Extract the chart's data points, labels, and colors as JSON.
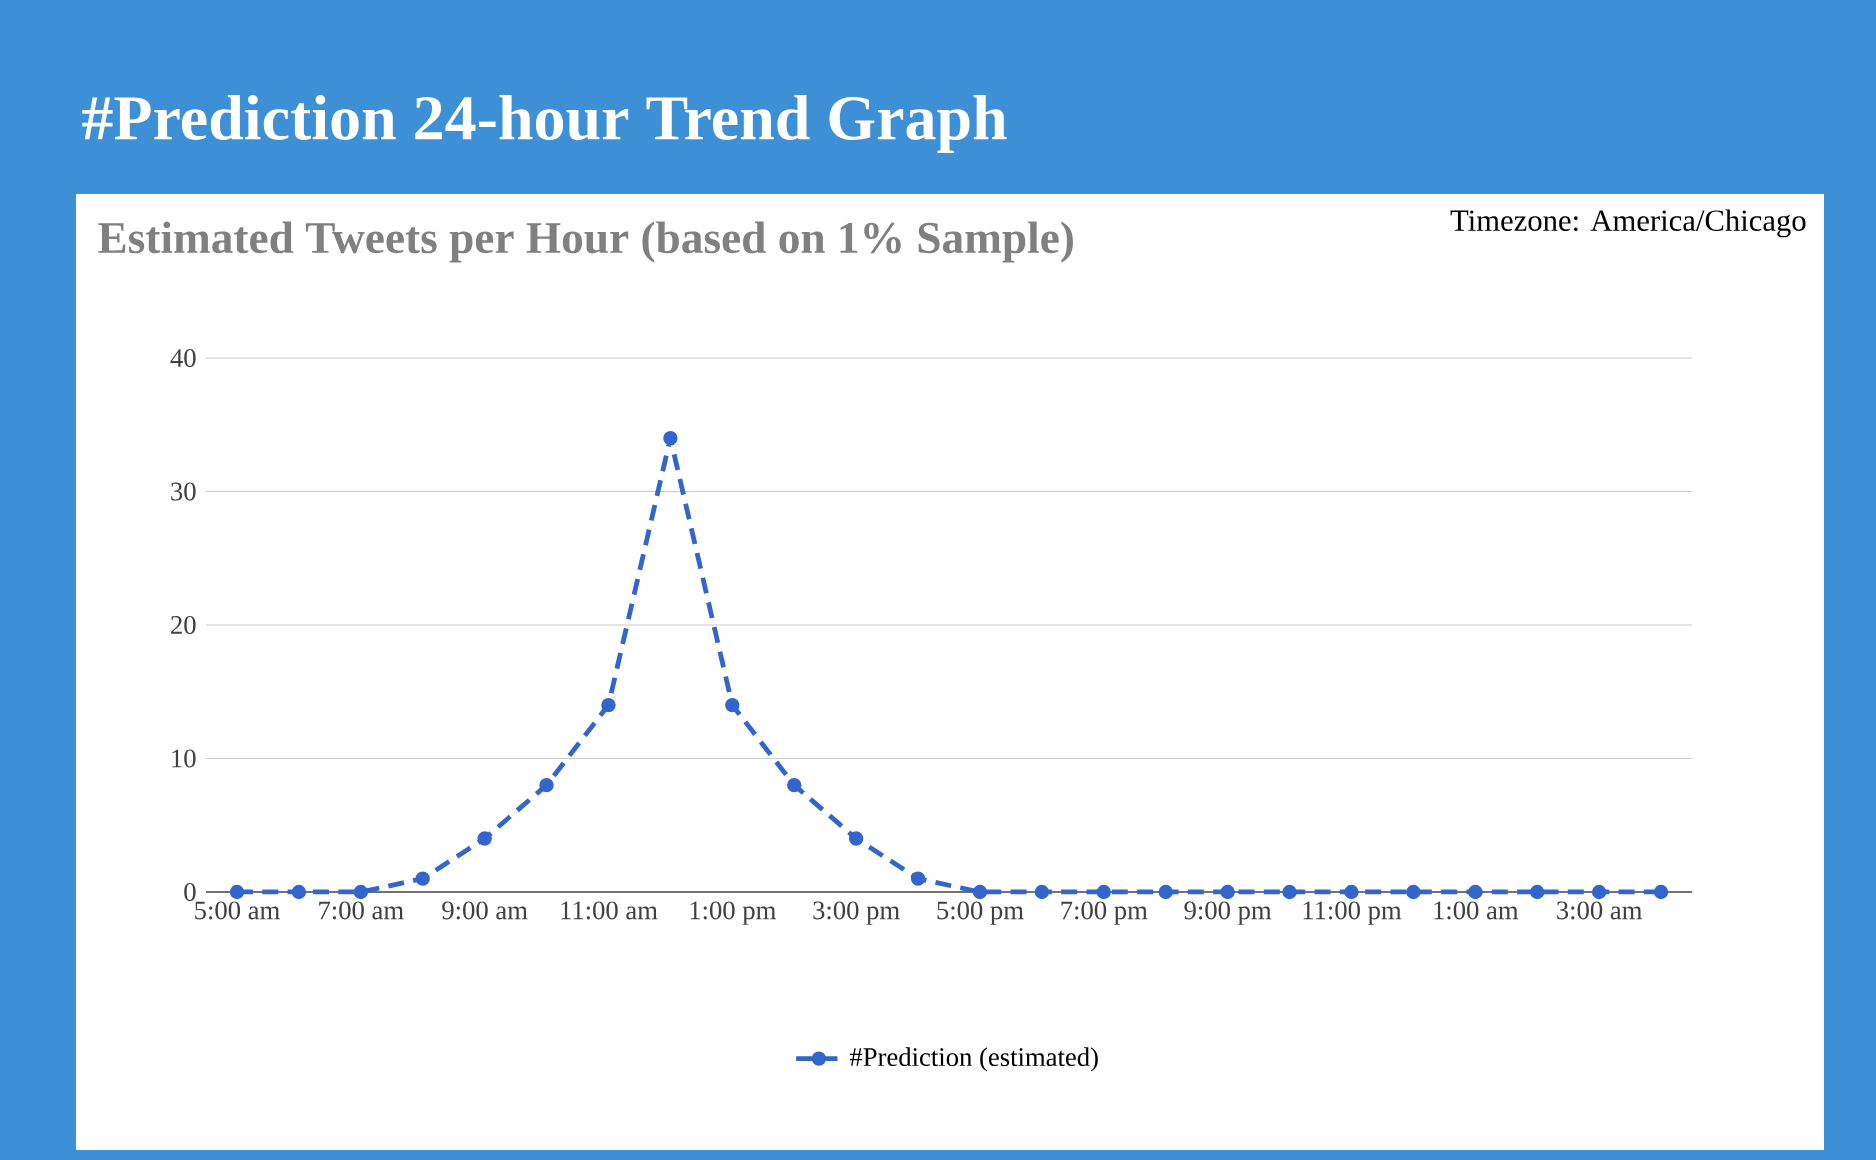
{
  "chart_data": {
    "type": "line",
    "title": "#Prediction 24-hour Trend Graph",
    "subtitle": "Estimated Tweets per Hour (based on 1% Sample)",
    "annotations": [
      "Timezone: America/Chicago"
    ],
    "categories": [
      "5:00 am",
      null,
      "7:00 am",
      null,
      "9:00 am",
      null,
      "11:00 am",
      null,
      "1:00 pm",
      null,
      "3:00 pm",
      null,
      "5:00 pm",
      null,
      "7:00 pm",
      null,
      "9:00 pm",
      null,
      "11:00 pm",
      null,
      "1:00 am",
      null,
      "3:00 am",
      null
    ],
    "series": [
      {
        "name": "#Prediction (estimated)",
        "color": "#3366cc",
        "values": [
          0,
          0,
          0,
          1,
          4,
          8,
          14,
          34,
          14,
          8,
          4,
          1,
          0,
          0,
          0,
          0,
          0,
          0,
          0,
          0,
          0,
          0,
          0,
          0
        ]
      }
    ],
    "ylim": [
      0,
      40
    ],
    "yticks": [
      0,
      10,
      20,
      30,
      40
    ],
    "grid": "y",
    "legend": "bottom",
    "marker": "circle",
    "line_style": "dashed"
  }
}
